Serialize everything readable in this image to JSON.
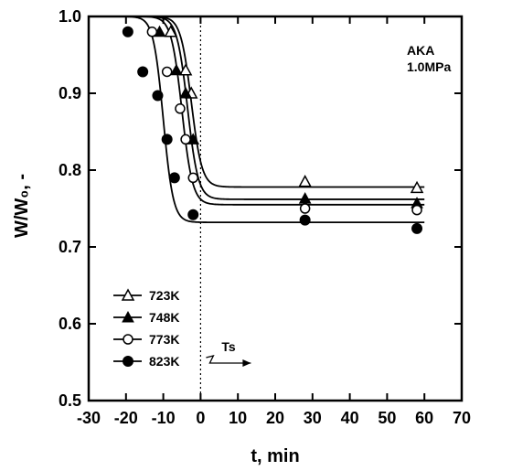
{
  "chart_data": {
    "type": "scatter",
    "title": "",
    "xlabel": "t, min",
    "ylabel": "W/W₀, -",
    "xlim": [
      -30,
      70
    ],
    "ylim": [
      0.5,
      1.0
    ],
    "x_ticks": [
      "-30",
      "-20",
      "-10",
      "0",
      "10",
      "20",
      "30",
      "40",
      "50",
      "60",
      "70"
    ],
    "y_ticks": [
      "0.5",
      "0.6",
      "0.7",
      "0.8",
      "0.9",
      "1.0"
    ],
    "grid": false,
    "legend_position": "bottom-left",
    "annotation_sample": [
      "AKA",
      "1.0MPa"
    ],
    "ts_marker": {
      "x": 0,
      "label": "Ts"
    },
    "series": [
      {
        "name": "723K",
        "marker": "open-triangle",
        "points": [
          [
            -8,
            0.98
          ],
          [
            -4,
            0.93
          ],
          [
            -2.5,
            0.9
          ],
          [
            28,
            0.785
          ],
          [
            58,
            0.777
          ]
        ],
        "curve": {
          "t0": -2.5,
          "k": 0.7,
          "plateau": 0.778
        }
      },
      {
        "name": "748K",
        "marker": "filled-triangle",
        "points": [
          [
            -11,
            0.98
          ],
          [
            -6.5,
            0.93
          ],
          [
            -4,
            0.9
          ],
          [
            -2,
            0.84
          ],
          [
            28,
            0.763
          ],
          [
            58,
            0.757
          ]
        ],
        "curve": {
          "t0": -3.5,
          "k": 0.7,
          "plateau": 0.762
        }
      },
      {
        "name": "773K",
        "marker": "open-circle",
        "points": [
          [
            -13,
            0.98
          ],
          [
            -9,
            0.928
          ],
          [
            -5.5,
            0.88
          ],
          [
            -4,
            0.84
          ],
          [
            -2,
            0.79
          ],
          [
            28,
            0.75
          ],
          [
            58,
            0.748
          ]
        ],
        "curve": {
          "t0": -5,
          "k": 0.7,
          "plateau": 0.755
        }
      },
      {
        "name": "823K",
        "marker": "filled-circle",
        "points": [
          [
            -19.5,
            0.98
          ],
          [
            -15.5,
            0.928
          ],
          [
            -11.5,
            0.897
          ],
          [
            -9,
            0.84
          ],
          [
            -7,
            0.79
          ],
          [
            -2,
            0.742
          ],
          [
            28,
            0.735
          ],
          [
            58,
            0.724
          ]
        ],
        "curve": {
          "t0": -10,
          "k": 0.75,
          "plateau": 0.732
        }
      }
    ]
  }
}
